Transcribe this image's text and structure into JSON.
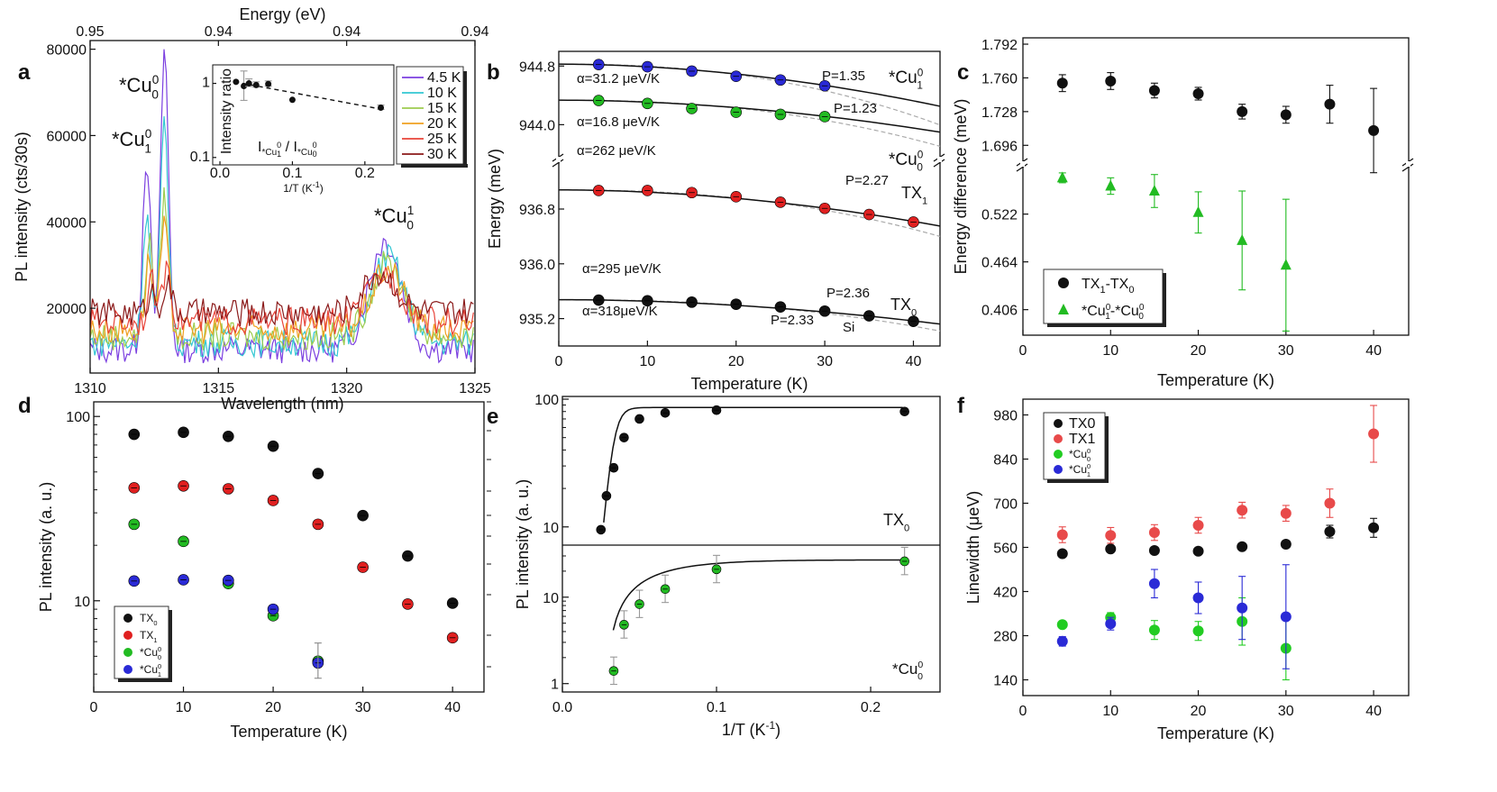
{
  "chart_data": [
    {
      "panel": "a",
      "type": "line",
      "xlabel": "Wavelength (nm)",
      "ylabel": "PL intensity (cts/30s)",
      "top_xlabel": "Energy (eV)",
      "xlim": [
        1310,
        1325
      ],
      "ylim": [
        5000,
        82000
      ],
      "xticks": [
        "1310",
        "1315",
        "1320",
        "1325"
      ],
      "yticks": [
        "20000",
        "40000",
        "60000",
        "80000"
      ],
      "top_xticks": [
        "0.95",
        "0.94",
        "0.94",
        "0.94"
      ],
      "peak_labels": [
        "*Cu",
        "*Cu",
        "*Cu"
      ],
      "peak_sup": [
        "0",
        "0",
        "1"
      ],
      "peak_sub": [
        "0",
        "1",
        "0"
      ],
      "series": [
        {
          "name": "4.5 K",
          "color": "#7b3fe0",
          "baseline": 10500,
          "peaks": [
            [
              1312.2,
              45000
            ],
            [
              1312.9,
              70000
            ],
            [
              1321.5,
              25000
            ]
          ]
        },
        {
          "name": "10 K",
          "color": "#33c7d3",
          "baseline": 12000,
          "peaks": [
            [
              1312.2,
              30000
            ],
            [
              1312.9,
              52000
            ],
            [
              1321.6,
              20000
            ]
          ]
        },
        {
          "name": "15 K",
          "color": "#9ecc4f",
          "baseline": 13500,
          "peaks": [
            [
              1312.3,
              22000
            ],
            [
              1312.9,
              33000
            ],
            [
              1321.6,
              17000
            ]
          ]
        },
        {
          "name": "20 K",
          "color": "#f0a020",
          "baseline": 15000,
          "peaks": [
            [
              1312.3,
              16000
            ],
            [
              1312.9,
              24000
            ],
            [
              1321.6,
              14000
            ]
          ]
        },
        {
          "name": "25 K",
          "color": "#e8443a",
          "baseline": 17000,
          "peaks": [
            [
              1312.4,
              9000
            ],
            [
              1313.0,
              14000
            ],
            [
              1321.5,
              11000
            ]
          ]
        },
        {
          "name": "30 K",
          "color": "#8b1a1a",
          "baseline": 19000,
          "peaks": [
            [
              1312.4,
              5000
            ],
            [
              1313.0,
              7000
            ],
            [
              1321.3,
              9000
            ]
          ]
        }
      ],
      "inset": {
        "xlabel": "1/T (K",
        "xlabel_sup": "-1",
        "ylabel": "Intensity ratio",
        "xticks": [
          "0.0",
          "0.1",
          "0.2"
        ],
        "yticks": [
          "0.1",
          "1"
        ],
        "annotation": "I",
        "annotation_div": "/ I",
        "x": [
          0.0222,
          0.033,
          0.04,
          0.05,
          0.0667,
          0.1,
          0.222
        ],
        "y": [
          1.05,
          0.92,
          1.0,
          0.95,
          0.98,
          0.6,
          0.47
        ],
        "err": [
          0.0,
          0.55,
          0.15,
          0.1,
          0.1,
          0.0,
          0.04
        ]
      }
    },
    {
      "panel": "b",
      "type": "scatter",
      "xlabel": "Temperature (K)",
      "ylabel": "Energy (meV)",
      "xticks": [
        "0",
        "10",
        "20",
        "30",
        "40"
      ],
      "yticks_upper": [
        "944.0",
        "944.8"
      ],
      "yticks_lower": [
        "935.2",
        "936.0",
        "936.8"
      ],
      "series": [
        {
          "name": "*Cu",
          "sup": "0",
          "sub": "1",
          "color": "#2a2ad6",
          "x": [
            4.5,
            10,
            15,
            20,
            25,
            30
          ],
          "y": [
            944.82,
            944.79,
            944.73,
            944.66,
            944.61,
            944.53
          ],
          "alpha_label": "α=31.2 μeV/K",
          "p_label": "P=1.35"
        },
        {
          "name": "*Cu",
          "sup": "0",
          "sub": "0",
          "color": "#22bb22",
          "x": [
            4.5,
            10,
            15,
            20,
            25,
            30
          ],
          "y": [
            944.33,
            944.29,
            944.22,
            944.17,
            944.14,
            944.11
          ],
          "alpha_label": "α=16.8 μeV/K",
          "p_label": "P=1.23"
        },
        {
          "name": "TX",
          "sub": "1",
          "color": "#e02020",
          "x": [
            4.5,
            10,
            15,
            20,
            25,
            30,
            35,
            40
          ],
          "y": [
            937.07,
            937.07,
            937.04,
            936.98,
            936.9,
            936.81,
            936.72,
            936.61
          ],
          "alpha_label": "α=262 μeV/K",
          "p_label": "P=2.27"
        },
        {
          "name": "TX",
          "sub": "0",
          "color": "#111111",
          "x": [
            4.5,
            10,
            15,
            20,
            25,
            30,
            35,
            40
          ],
          "y": [
            935.47,
            935.46,
            935.44,
            935.41,
            935.37,
            935.31,
            935.24,
            935.16
          ],
          "alpha_label": "α=295 μeV/K",
          "p_label": "P=2.36"
        }
      ],
      "si_label": "Si",
      "si_alpha_label": "α=318μeV/K",
      "si_p_label": "P=2.33"
    },
    {
      "panel": "c",
      "type": "scatter",
      "xlabel": "Temperature (K)",
      "ylabel": "Energy difference (meV)",
      "xticks": [
        "0",
        "10",
        "20",
        "30",
        "40"
      ],
      "yticks_upper": [
        "1.696",
        "1.728",
        "1.760",
        "1.792"
      ],
      "yticks_lower": [
        "0.406",
        "0.464",
        "0.522"
      ],
      "series": [
        {
          "name": "TX",
          "sub": "1",
          "name2": "-TX",
          "sub2": "0",
          "color": "#111111",
          "x": [
            4.5,
            10,
            15,
            20,
            25,
            30,
            35,
            40
          ],
          "y": [
            1.755,
            1.757,
            1.748,
            1.745,
            1.728,
            1.725,
            1.735,
            1.71
          ],
          "err": [
            0.008,
            0.008,
            0.007,
            0.006,
            0.007,
            0.008,
            0.018,
            0.04
          ]
        },
        {
          "name": "*Cu",
          "sup": "0",
          "sub": "1",
          "name2": "-*Cu",
          "sup2": "0",
          "sub2": "0",
          "color": "#22bb22",
          "x": [
            4.5,
            10,
            15,
            20,
            25,
            30
          ],
          "y": [
            0.566,
            0.556,
            0.55,
            0.524,
            0.49,
            0.46
          ],
          "err": [
            0.006,
            0.01,
            0.02,
            0.025,
            0.06,
            0.08
          ]
        }
      ]
    },
    {
      "panel": "d",
      "type": "scatter",
      "xlabel": "Temperature (K)",
      "ylabel": "PL intensity (a. u.)",
      "xticks": [
        "0",
        "10",
        "20",
        "30",
        "40"
      ],
      "yticks": [
        "10",
        "100"
      ],
      "log_y": true,
      "series": [
        {
          "name": "TX",
          "sub": "0",
          "color": "#111111",
          "x": [
            4.5,
            10,
            15,
            20,
            25,
            30,
            35,
            40
          ],
          "y": [
            80,
            82,
            78,
            69,
            49,
            29,
            17.5,
            9.7
          ]
        },
        {
          "name": "TX",
          "sub": "1",
          "color": "#e02020",
          "x": [
            4.5,
            10,
            15,
            20,
            25,
            30,
            35,
            40
          ],
          "y": [
            41,
            42,
            40.5,
            35,
            26,
            15.2,
            9.6,
            6.3
          ]
        },
        {
          "name": "*Cu",
          "sup": "0",
          "sub": "0",
          "color": "#22bb22",
          "x": [
            4.5,
            10,
            15,
            20,
            25
          ],
          "y": [
            26,
            21,
            12.4,
            8.3,
            4.7
          ]
        },
        {
          "name": "*Cu",
          "sup": "0",
          "sub": "1",
          "color": "#2a2ad6",
          "x": [
            4.5,
            10,
            15,
            20,
            25
          ],
          "y": [
            12.8,
            13,
            12.9,
            9,
            4.6
          ]
        }
      ]
    },
    {
      "panel": "e",
      "type": "scatter",
      "xlabel": "1/T (K",
      "xlabel_sup": "-1",
      "ylabel": "PL intensity (a. u.)",
      "xticks": [
        "0.0",
        "0.1",
        "0.2"
      ],
      "top_yticks": [
        "10",
        "100"
      ],
      "bottom_yticks": [
        "1",
        "10"
      ],
      "log_y": true,
      "series": [
        {
          "name": "TX",
          "sub": "0",
          "color": "#111111",
          "x": [
            0.025,
            0.0286,
            0.0333,
            0.04,
            0.05,
            0.0667,
            0.1,
            0.222
          ],
          "y": [
            9.5,
            17.5,
            29,
            50,
            70,
            78,
            82,
            80
          ]
        },
        {
          "name": "*Cu",
          "sup": "0",
          "sub": "0",
          "color": "#22bb22",
          "x": [
            0.0333,
            0.04,
            0.05,
            0.0667,
            0.1,
            0.222
          ],
          "y": [
            1.4,
            4.8,
            8.3,
            12.4,
            21,
            26
          ]
        }
      ]
    },
    {
      "panel": "f",
      "type": "scatter",
      "xlabel": "Temperature (K)",
      "ylabel": "Linewidth (μeV)",
      "xticks": [
        "0",
        "10",
        "20",
        "30",
        "40"
      ],
      "yticks": [
        "140",
        "280",
        "420",
        "560",
        "700",
        "840",
        "980"
      ],
      "ylim": [
        90,
        1030
      ],
      "series": [
        {
          "name": "TX0",
          "color": "#111111",
          "x": [
            4.5,
            10,
            15,
            20,
            25,
            30,
            35,
            40
          ],
          "y": [
            540,
            555,
            550,
            548,
            562,
            570,
            610,
            622
          ],
          "err": [
            10,
            10,
            10,
            10,
            10,
            10,
            20,
            30
          ]
        },
        {
          "name": "TX1",
          "color": "#e84a4a",
          "x": [
            4.5,
            10,
            15,
            20,
            25,
            30,
            35,
            40
          ],
          "y": [
            600,
            598,
            607,
            630,
            678,
            668,
            700,
            920
          ],
          "err": [
            25,
            25,
            25,
            25,
            25,
            25,
            45,
            90
          ]
        },
        {
          "name": "*Cu",
          "sup": "0",
          "sub": "0",
          "color": "#22cc22",
          "x": [
            4.5,
            10,
            15,
            20,
            25,
            30
          ],
          "y": [
            315,
            338,
            298,
            295,
            325,
            240
          ],
          "err": [
            10,
            15,
            30,
            30,
            75,
            100
          ]
        },
        {
          "name": "*Cu",
          "sup": "0",
          "sub": "1",
          "color": "#2a2ad6",
          "x": [
            4.5,
            10,
            15,
            20,
            25,
            30
          ],
          "y": [
            262,
            318,
            445,
            400,
            368,
            340
          ],
          "err": [
            15,
            20,
            45,
            50,
            100,
            165
          ]
        }
      ]
    }
  ]
}
